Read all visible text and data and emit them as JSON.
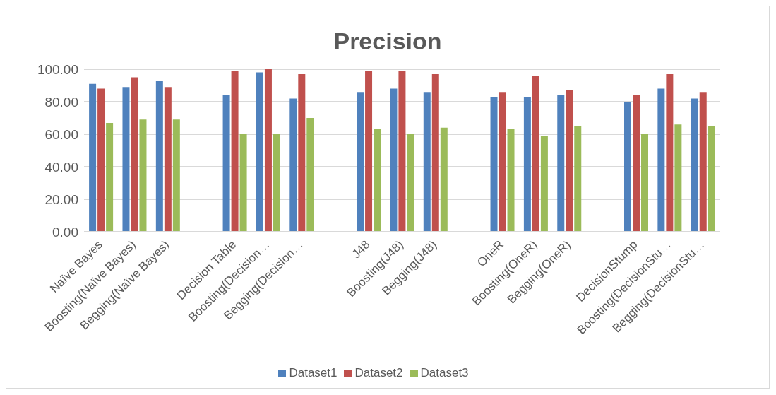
{
  "chart_data": {
    "type": "bar",
    "title": "Precision",
    "categories": [
      "Naïve Bayes",
      "Boosting(Naïve Bayes)",
      "Begging(Naïve Bayes)",
      null,
      "Decision Table",
      "Boosting(Decision…",
      "Begging(Decision…",
      null,
      "J48",
      "Boosting(J48)",
      "Begging(J48)",
      null,
      "OneR",
      "Boosting(OneR)",
      "Begging(OneR)",
      null,
      "DecisionStump",
      "Boosting(DecisionStu…",
      "Begging(DecisionStu…"
    ],
    "series": [
      {
        "name": "Dataset1",
        "color": "#4f81bd",
        "values": [
          91,
          89,
          93,
          null,
          84,
          98,
          82,
          null,
          86,
          88,
          86,
          null,
          83,
          83,
          84,
          null,
          80,
          88,
          82
        ]
      },
      {
        "name": "Dataset2",
        "color": "#c0504d",
        "values": [
          88,
          95,
          89,
          null,
          99,
          100,
          97,
          null,
          99,
          99,
          97,
          null,
          86,
          96,
          87,
          null,
          84,
          97,
          86
        ]
      },
      {
        "name": "Dataset3",
        "color": "#9bbb59",
        "values": [
          67,
          69,
          69,
          null,
          60,
          60,
          70,
          null,
          63,
          60,
          64,
          null,
          63,
          59,
          65,
          null,
          60,
          66,
          65
        ]
      }
    ],
    "ylim": [
      0,
      100
    ],
    "yticks": [
      {
        "value": 0,
        "label": "0.00"
      },
      {
        "value": 20,
        "label": "20.00"
      },
      {
        "value": 40,
        "label": "40.00"
      },
      {
        "value": 60,
        "label": "60.00"
      },
      {
        "value": 80,
        "label": "80.00"
      },
      {
        "value": 100,
        "label": "100.00"
      }
    ],
    "grid": "y",
    "legend": "bottom"
  }
}
